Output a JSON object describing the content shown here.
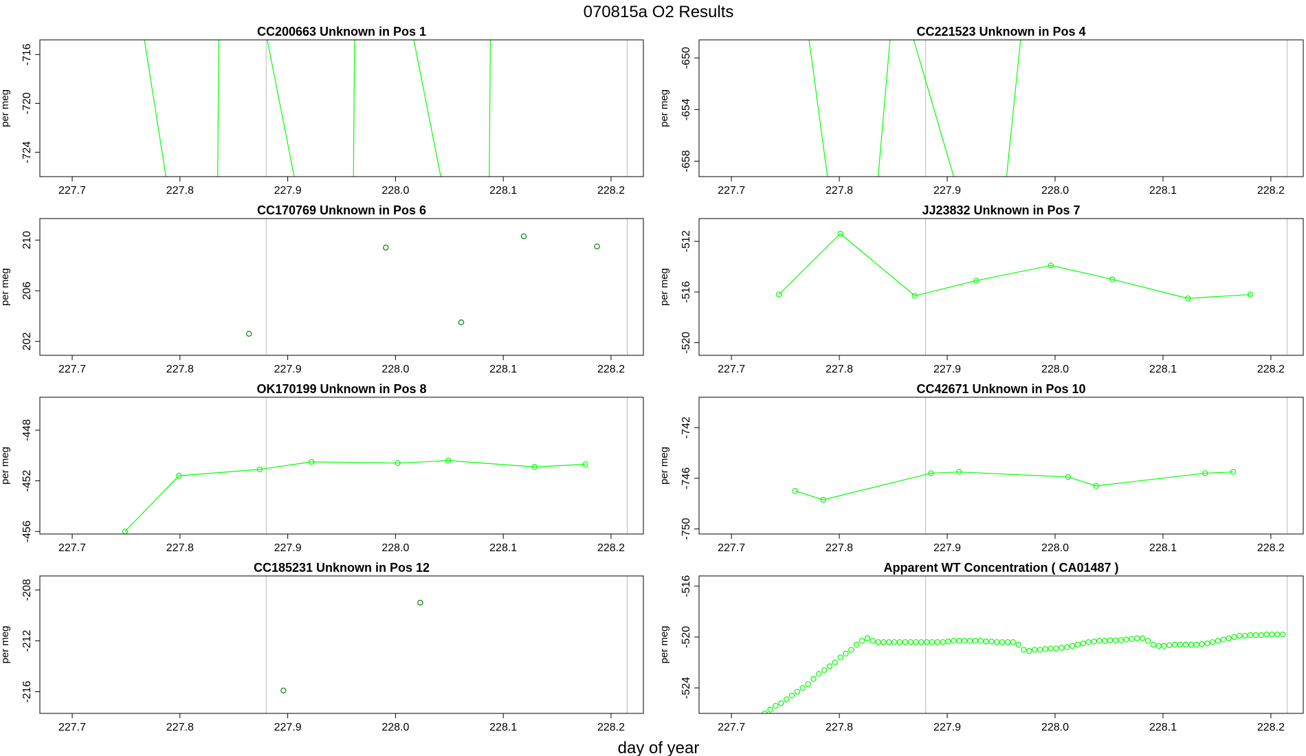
{
  "figure": {
    "title": "070815a  O2 Results",
    "xlabel": "day of year"
  },
  "chart_data": [
    {
      "type": "line",
      "title": "CC200663    Unknown in Pos 1",
      "ylabel": "per meg",
      "xlim": [
        227.67,
        228.23
      ],
      "ylim": [
        -726.0,
        -714.8
      ],
      "xticks": [
        "227.7",
        "227.8",
        "227.9",
        "228.0",
        "228.1",
        "228.2"
      ],
      "yticks": [
        "-716",
        "-720",
        "-724"
      ],
      "vlines": [
        227.88,
        228.215
      ],
      "line_color": "#00ff00",
      "segments": [
        {
          "x": [
            227.767,
            227.787
          ],
          "y": [
            -714.8,
            -726.0
          ]
        },
        {
          "x": [
            227.836,
            227.835
          ],
          "y": [
            -714.8,
            -726.0
          ]
        },
        {
          "x": [
            227.881,
            227.906
          ],
          "y": [
            -714.8,
            -726.0
          ]
        },
        {
          "x": [
            227.962,
            227.961
          ],
          "y": [
            -714.8,
            -726.0
          ]
        },
        {
          "x": [
            228.017,
            228.042
          ],
          "y": [
            -714.8,
            -726.0
          ]
        },
        {
          "x": [
            228.088,
            228.087
          ],
          "y": [
            -714.8,
            -726.0
          ]
        }
      ]
    },
    {
      "type": "line",
      "title": "CC221523    Unknown in Pos 4",
      "ylabel": "per meg",
      "xlim": [
        227.67,
        228.23
      ],
      "ylim": [
        -659.2,
        -648.6
      ],
      "xticks": [
        "227.7",
        "227.8",
        "227.9",
        "228.0",
        "228.1",
        "228.2"
      ],
      "yticks": [
        "-650",
        "-654",
        "-658"
      ],
      "vlines": [
        227.88,
        228.215
      ],
      "line_color": "#00ff00",
      "segments": [
        {
          "x": [
            227.772,
            227.789
          ],
          "y": [
            -648.6,
            -659.2
          ]
        },
        {
          "x": [
            227.847,
            227.836
          ],
          "y": [
            -648.6,
            -659.2
          ]
        },
        {
          "x": [
            227.869,
            227.906
          ],
          "y": [
            -648.6,
            -659.2
          ]
        },
        {
          "x": [
            227.968,
            227.955
          ],
          "y": [
            -648.6,
            -659.2
          ]
        }
      ]
    },
    {
      "type": "scatter",
      "title": "CC170769    Unknown in Pos 6",
      "ylabel": "per meg",
      "xlim": [
        227.67,
        228.23
      ],
      "ylim": [
        200.9,
        211.7
      ],
      "xticks": [
        "227.7",
        "227.8",
        "227.9",
        "228.0",
        "228.1",
        "228.2"
      ],
      "yticks": [
        "210",
        "206",
        "202"
      ],
      "vlines": [
        227.88,
        228.215
      ],
      "point_color": "#008000",
      "x": [
        227.864,
        227.991,
        228.061,
        228.119,
        228.187
      ],
      "y": [
        202.6,
        209.4,
        203.5,
        210.3,
        209.5
      ]
    },
    {
      "type": "line",
      "title": "JJ23832    Unknown in Pos 7",
      "ylabel": "per meg",
      "xlim": [
        227.67,
        228.23
      ],
      "ylim": [
        -521.0,
        -510.2
      ],
      "xticks": [
        "227.7",
        "227.8",
        "227.9",
        "228.0",
        "228.1",
        "228.2"
      ],
      "yticks": [
        "-512",
        "-516",
        "-520"
      ],
      "vlines": [
        227.88,
        228.215
      ],
      "line_color": "#00ff00",
      "x": [
        227.744,
        227.801,
        227.87,
        227.927,
        227.996,
        228.053,
        228.123,
        228.181
      ],
      "y": [
        -516.2,
        -511.4,
        -516.3,
        -515.1,
        -513.9,
        -515.0,
        -516.5,
        -516.2
      ]
    },
    {
      "type": "line",
      "title": "OK170199    Unknown in Pos 8",
      "ylabel": "per meg",
      "xlim": [
        227.67,
        228.23
      ],
      "ylim": [
        -456.2,
        -445.4
      ],
      "xticks": [
        "227.7",
        "227.8",
        "227.9",
        "228.0",
        "228.1",
        "228.2"
      ],
      "yticks": [
        "-448",
        "-452",
        "-456"
      ],
      "vlines": [
        227.88,
        228.215
      ],
      "line_color": "#00ff00",
      "x": [
        227.749,
        227.799,
        227.874,
        227.922,
        228.002,
        228.049,
        228.129,
        228.176
      ],
      "y": [
        -456.0,
        -451.6,
        -451.1,
        -450.5,
        -450.6,
        -450.4,
        -450.9,
        -450.7
      ]
    },
    {
      "type": "line",
      "title": "CC42671    Unknown in Pos 10",
      "ylabel": "per meg",
      "xlim": [
        227.67,
        228.23
      ],
      "ylim": [
        -750.4,
        -739.6
      ],
      "xticks": [
        "227.7",
        "227.8",
        "227.9",
        "228.0",
        "228.1",
        "228.2"
      ],
      "yticks": [
        "-742",
        "-746",
        "-750"
      ],
      "vlines": [
        227.88,
        228.215
      ],
      "line_color": "#00ff00",
      "x": [
        227.759,
        227.785,
        227.885,
        227.911,
        228.012,
        228.038,
        228.139,
        228.165
      ],
      "y": [
        -747.0,
        -747.7,
        -745.6,
        -745.5,
        -745.9,
        -746.6,
        -745.6,
        -745.5
      ]
    },
    {
      "type": "scatter",
      "title": "CC185231    Unknown in Pos 12",
      "ylabel": "per meg",
      "xlim": [
        227.67,
        228.23
      ],
      "ylim": [
        -217.7,
        -206.9
      ],
      "xticks": [
        "227.7",
        "227.8",
        "227.9",
        "228.0",
        "228.1",
        "228.2"
      ],
      "yticks": [
        "-208",
        "-212",
        "-216"
      ],
      "vlines": [
        227.88,
        228.215
      ],
      "point_color": "#008000",
      "x": [
        227.896,
        228.023
      ],
      "y": [
        -215.9,
        -209.0
      ]
    },
    {
      "type": "scatter",
      "title": "Apparent WT Concentration ( CA01487 )",
      "ylabel": "per meg",
      "xlim": [
        227.67,
        228.23
      ],
      "ylim": [
        -526.0,
        -515.2
      ],
      "xticks": [
        "227.7",
        "227.8",
        "227.9",
        "228.0",
        "228.1",
        "228.2"
      ],
      "yticks": [
        "-516",
        "-520",
        "-524"
      ],
      "vlines": [
        227.88,
        228.215
      ],
      "point_color": "#00ff00",
      "x": [
        227.731,
        227.736,
        227.741,
        227.746,
        227.751,
        227.756,
        227.761,
        227.766,
        227.771,
        227.776,
        227.781,
        227.786,
        227.791,
        227.796,
        227.801,
        227.806,
        227.811,
        227.816,
        227.821,
        227.826,
        227.831,
        227.836,
        227.841,
        227.846,
        227.851,
        227.856,
        227.861,
        227.866,
        227.871,
        227.876,
        227.881,
        227.886,
        227.891,
        227.896,
        227.901,
        227.906,
        227.911,
        227.916,
        227.921,
        227.926,
        227.931,
        227.936,
        227.941,
        227.946,
        227.951,
        227.956,
        227.961,
        227.966,
        227.971,
        227.976,
        227.981,
        227.986,
        227.991,
        227.996,
        228.001,
        228.006,
        228.011,
        228.016,
        228.021,
        228.026,
        228.031,
        228.036,
        228.041,
        228.046,
        228.051,
        228.056,
        228.061,
        228.066,
        228.071,
        228.076,
        228.081,
        228.086,
        228.091,
        228.096,
        228.101,
        228.106,
        228.111,
        228.116,
        228.121,
        228.126,
        228.131,
        228.136,
        228.141,
        228.146,
        228.151,
        228.156,
        228.161,
        228.166,
        228.171,
        228.176,
        228.181,
        228.186,
        228.191,
        228.196,
        228.201,
        228.206,
        228.211
      ],
      "y": [
        -526.0,
        -525.7,
        -525.4,
        -525.2,
        -524.9,
        -524.6,
        -524.3,
        -524.0,
        -523.7,
        -523.3,
        -522.9,
        -522.6,
        -522.3,
        -522.0,
        -521.6,
        -521.3,
        -521.0,
        -520.6,
        -520.3,
        -520.1,
        -520.3,
        -520.4,
        -520.4,
        -520.4,
        -520.4,
        -520.4,
        -520.4,
        -520.4,
        -520.4,
        -520.4,
        -520.4,
        -520.4,
        -520.4,
        -520.4,
        -520.35,
        -520.3,
        -520.3,
        -520.3,
        -520.3,
        -520.3,
        -520.3,
        -520.35,
        -520.35,
        -520.4,
        -520.4,
        -520.4,
        -520.4,
        -520.6,
        -521.0,
        -521.1,
        -521.0,
        -521.0,
        -520.95,
        -520.9,
        -520.9,
        -520.85,
        -520.8,
        -520.7,
        -520.6,
        -520.5,
        -520.4,
        -520.35,
        -520.3,
        -520.3,
        -520.25,
        -520.25,
        -520.25,
        -520.2,
        -520.15,
        -520.1,
        -520.1,
        -520.3,
        -520.6,
        -520.7,
        -520.7,
        -520.65,
        -520.6,
        -520.6,
        -520.6,
        -520.6,
        -520.6,
        -520.55,
        -520.5,
        -520.4,
        -520.3,
        -520.2,
        -520.1,
        -520.0,
        -519.9,
        -519.9,
        -519.85,
        -519.85,
        -519.85,
        -519.8,
        -519.8,
        -519.8,
        -519.8
      ]
    }
  ]
}
